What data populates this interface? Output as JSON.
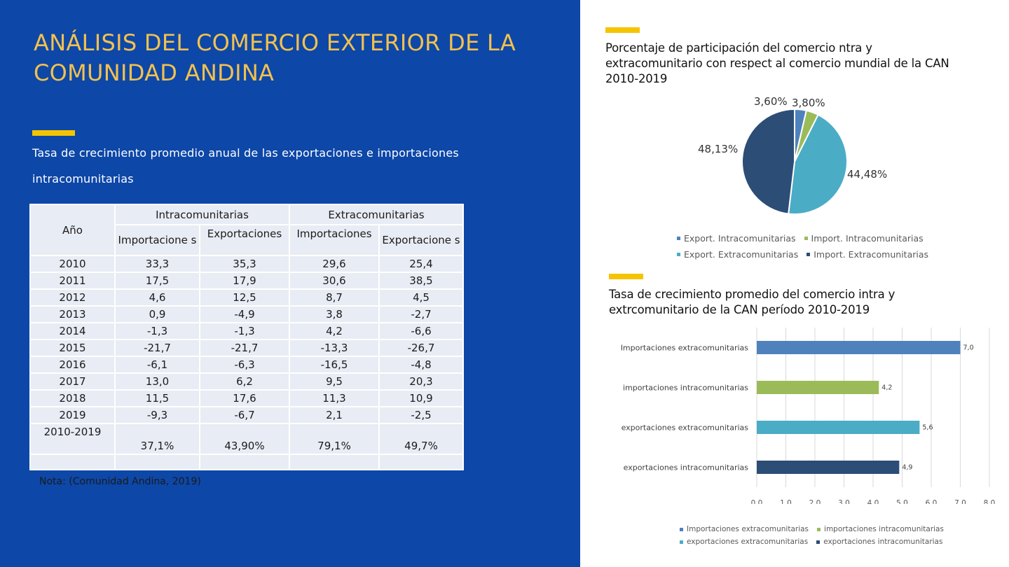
{
  "title": "ANÁLISIS DEL COMERCIO EXTERIOR DE LA COMUNIDAD ANDINA",
  "left_subtitle": "Tasa de crecimiento promedio anual de las exportaciones e importaciones intracomunitarias",
  "table": {
    "year_header": "Año",
    "group_intra": "Intracomunitarias",
    "group_extra": "Extracomunitarias",
    "sub_headers": [
      "Importacione s",
      "Exportaciones",
      "Importaciones",
      "Exportacione s"
    ],
    "rows": [
      {
        "year": "2010",
        "values": [
          "33,3",
          "35,3",
          "29,6",
          "25,4"
        ]
      },
      {
        "year": "2011",
        "values": [
          "17,5",
          "17,9",
          "30,6",
          "38,5"
        ]
      },
      {
        "year": "2012",
        "values": [
          "4,6",
          "12,5",
          "8,7",
          "4,5"
        ]
      },
      {
        "year": "2013",
        "values": [
          "0,9",
          "-4,9",
          "3,8",
          "-2,7"
        ]
      },
      {
        "year": "2014",
        "values": [
          "-1,3",
          "-1,3",
          "4,2",
          "-6,6"
        ]
      },
      {
        "year": "2015",
        "values": [
          "-21,7",
          "-21,7",
          "-13,3",
          "-26,7"
        ]
      },
      {
        "year": "2016",
        "values": [
          "-6,1",
          "-6,3",
          "-16,5",
          "-4,8"
        ]
      },
      {
        "year": "2017",
        "values": [
          "13,0",
          "6,2",
          "9,5",
          "20,3"
        ]
      },
      {
        "year": "2018",
        "values": [
          "11,5",
          "17,6",
          "11,3",
          "10,9"
        ]
      },
      {
        "year": "2019",
        "values": [
          "-9,3",
          "-6,7",
          "2,1",
          "-2,5"
        ]
      }
    ],
    "total": {
      "year": "2010-2019",
      "values": [
        "37,1%",
        "43,90%",
        "79,1%",
        "49,7%"
      ]
    }
  },
  "note": "Nota: (Comunidad Andina, 2019)",
  "colors": {
    "left_bg": "#0d47a8",
    "title": "#f2c14e",
    "accent": "#f5c400",
    "s1": "#4f81bd",
    "s2": "#9bbb59",
    "s3": "#4bacc6",
    "s4": "#2c4d75"
  },
  "chart_data": [
    {
      "type": "pie",
      "title": "Porcentaje de participación del comercio ntra y extracomunitario con respect al comercio mundial de la CAN 2010-2019",
      "labels": [
        "Export. Intracomunitarias",
        "Import. Intracomunitarias",
        "Export. Extracomunitarias",
        "Import. Extracomunitarias"
      ],
      "values": [
        3.6,
        3.8,
        44.48,
        48.13
      ],
      "value_labels": [
        "3,60%",
        "3,80%",
        "44,48%",
        "48,13%"
      ],
      "legend": "bottom"
    },
    {
      "type": "bar",
      "orientation": "horizontal",
      "title": "Tasa de crecimiento promedio del comercio intra y extrcomunitario de la CAN período 2010-2019",
      "categories": [
        "Importaciones extracomunitarias",
        "importaciones intracomunitarias",
        "exportaciones extracomunitarias",
        "exportaciones intracomunitarias"
      ],
      "values": [
        7.0,
        4.2,
        5.6,
        4.9
      ],
      "value_labels": [
        "7,0",
        "4,2",
        "5,6",
        "4,9"
      ],
      "xlim": [
        0,
        8
      ],
      "x_ticks": [
        "0,0",
        "1,0",
        "2,0",
        "3,0",
        "4,0",
        "5,0",
        "6,0",
        "7,0",
        "8,0"
      ],
      "legend": "bottom"
    }
  ]
}
